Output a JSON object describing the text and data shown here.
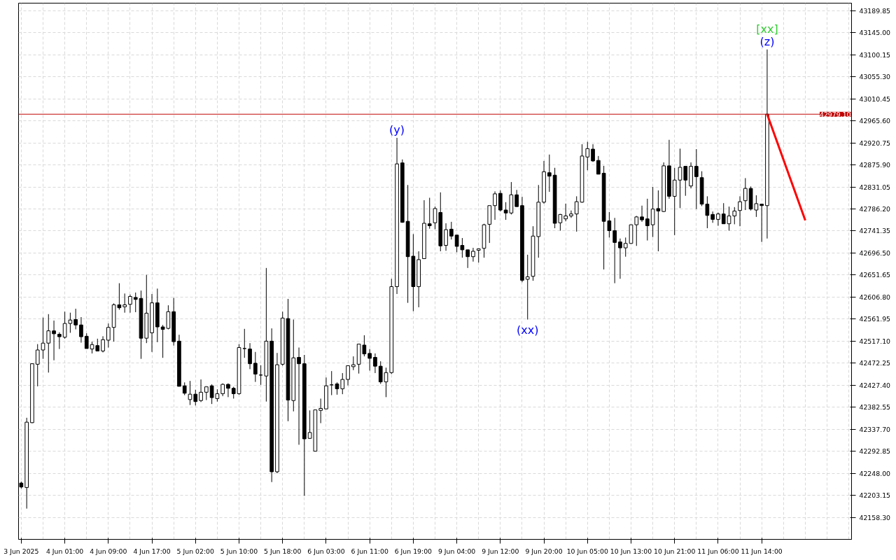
{
  "chart_data": {
    "type": "candlestick",
    "color": "#000000",
    "categories": [
      "3 Jun 2025",
      null,
      null,
      null,
      null,
      null,
      null,
      null,
      "4 Jun 01:00",
      null,
      null,
      null,
      null,
      null,
      null,
      null,
      "4 Jun 09:00",
      null,
      null,
      null,
      null,
      null,
      null,
      null,
      "4 Jun 17:00",
      null,
      null,
      null,
      null,
      null,
      null,
      null,
      "5 Jun 02:00",
      null,
      null,
      null,
      null,
      null,
      null,
      null,
      "5 Jun 10:00",
      null,
      null,
      null,
      null,
      null,
      null,
      null,
      "5 Jun 18:00",
      null,
      null,
      null,
      null,
      null,
      null,
      null,
      "6 Jun 03:00",
      null,
      null,
      null,
      null,
      null,
      null,
      null,
      "6 Jun 11:00",
      null,
      null,
      null,
      null,
      null,
      null,
      null,
      "6 Jun 19:00",
      null,
      null,
      null,
      null,
      null,
      null,
      null,
      "9 Jun 04:00",
      null,
      null,
      null,
      null,
      null,
      null,
      null,
      "9 Jun 12:00",
      null,
      null,
      null,
      null,
      null,
      null,
      null,
      "9 Jun 20:00",
      null,
      null,
      null,
      null,
      null,
      null,
      null,
      "10 Jun 05:00",
      null,
      null,
      null,
      null,
      null,
      null,
      null,
      "10 Jun 13:00",
      null,
      null,
      null,
      null,
      null,
      null,
      null,
      "10 Jun 21:00",
      null,
      null,
      null,
      null,
      null,
      null,
      null,
      "11 Jun 06:00",
      null,
      null,
      null,
      null,
      null,
      null,
      null,
      "11 Jun 14:00",
      null,
      null,
      null,
      null,
      null,
      null,
      null,
      null,
      null,
      null,
      null,
      null,
      null,
      null,
      null,
      null
    ],
    "ohlc": [
      [
        42228,
        42231,
        42217,
        42220
      ],
      [
        42219,
        42361,
        42176,
        42352
      ],
      [
        42351,
        42472,
        42350,
        42471
      ],
      [
        42470,
        42511,
        42425,
        42499
      ],
      [
        42499,
        42565,
        42481,
        42513
      ],
      [
        42513,
        42572,
        42453,
        42538
      ],
      [
        42538,
        42559,
        42478,
        42532
      ],
      [
        42531,
        42535,
        42501,
        42526
      ],
      [
        42525,
        42577,
        42522,
        42553
      ],
      [
        42553,
        42575,
        42534,
        42560
      ],
      [
        42561,
        42583,
        42541,
        42550
      ],
      [
        42550,
        42566,
        42514,
        42526
      ],
      [
        42527,
        42533,
        42502,
        42502
      ],
      [
        42501,
        42516,
        42492,
        42510
      ],
      [
        42508,
        42522,
        42497,
        42497
      ],
      [
        42497,
        42527,
        42494,
        42520
      ],
      [
        42519,
        42553,
        42504,
        42545
      ],
      [
        42545,
        42594,
        42516,
        42591
      ],
      [
        42591,
        42635,
        42581,
        42585
      ],
      [
        42587,
        42614,
        42575,
        42591
      ],
      [
        42592,
        42612,
        42575,
        42608
      ],
      [
        42606,
        42616,
        42576,
        42602
      ],
      [
        42604,
        42620,
        42481,
        42523
      ],
      [
        42523,
        42652,
        42513,
        42574
      ],
      [
        42534,
        42613,
        42495,
        42595
      ],
      [
        42595,
        42624,
        42515,
        42546
      ],
      [
        42546,
        42550,
        42483,
        42541
      ],
      [
        42543,
        42590,
        42541,
        42577
      ],
      [
        42577,
        42605,
        42508,
        42516
      ],
      [
        42517,
        42530,
        42425,
        42425
      ],
      [
        42426,
        42433,
        42407,
        42411
      ],
      [
        42398,
        42436,
        42387,
        42409
      ],
      [
        42409,
        42418,
        42386,
        42394
      ],
      [
        42396,
        42439,
        42393,
        42413
      ],
      [
        42413,
        42424,
        42397,
        42424
      ],
      [
        42426,
        42429,
        42389,
        42402
      ],
      [
        42400,
        42419,
        42394,
        42410
      ],
      [
        42410,
        42431,
        42405,
        42429
      ],
      [
        42429,
        42431,
        42403,
        42421
      ],
      [
        42421,
        42424,
        42400,
        42410
      ],
      [
        42410,
        42511,
        42408,
        42504
      ],
      [
        42502,
        42542,
        42483,
        42502
      ],
      [
        42501,
        42513,
        42460,
        42471
      ],
      [
        42472,
        42495,
        42434,
        42450
      ],
      [
        42448,
        42468,
        42428,
        42448
      ],
      [
        42446,
        42666,
        42394,
        42517
      ],
      [
        42517,
        42543,
        42230,
        42251
      ],
      [
        42251,
        42493,
        42248,
        42469
      ],
      [
        42470,
        42577,
        42467,
        42564
      ],
      [
        42563,
        42603,
        42354,
        42397
      ],
      [
        42396,
        42561,
        42374,
        42483
      ],
      [
        42484,
        42504,
        42306,
        42471
      ],
      [
        42471,
        42489,
        42202,
        42318
      ],
      [
        42319,
        42376,
        42318,
        42331
      ],
      [
        42293,
        42377,
        42293,
        42377
      ],
      [
        42376,
        42400,
        42350,
        42380
      ],
      [
        42379,
        42443,
        42379,
        42426
      ],
      [
        42428,
        42456,
        42407,
        42428
      ],
      [
        42430,
        42433,
        42408,
        42420
      ],
      [
        42420,
        42452,
        42409,
        42439
      ],
      [
        42439,
        42467,
        42427,
        42467
      ],
      [
        42465,
        42486,
        42458,
        42469
      ],
      [
        42470,
        42511,
        42451,
        42511
      ],
      [
        42509,
        42529,
        42486,
        42491
      ],
      [
        42492,
        42501,
        42457,
        42482
      ],
      [
        42484,
        42492,
        42452,
        42466
      ],
      [
        42466,
        42476,
        42430,
        42434
      ],
      [
        42434,
        42463,
        42403,
        42453
      ],
      [
        42453,
        42644,
        42450,
        42628
      ],
      [
        42628,
        42931,
        42613,
        42878
      ],
      [
        42880,
        42887,
        42758,
        42759
      ],
      [
        42761,
        42835,
        42595,
        42689
      ],
      [
        42690,
        42735,
        42578,
        42628
      ],
      [
        42628,
        42700,
        42586,
        42683
      ],
      [
        42685,
        42804,
        42685,
        42757
      ],
      [
        42756,
        42809,
        42746,
        42752
      ],
      [
        42758,
        42791,
        42745,
        42787
      ],
      [
        42779,
        42820,
        42700,
        42711
      ],
      [
        42712,
        42757,
        42701,
        42744
      ],
      [
        42745,
        42760,
        42724,
        42731
      ],
      [
        42733,
        42733,
        42698,
        42710
      ],
      [
        42712,
        42727,
        42687,
        42703
      ],
      [
        42703,
        42703,
        42666,
        42689
      ],
      [
        42689,
        42707,
        42679,
        42700
      ],
      [
        42702,
        42705,
        42677,
        42705
      ],
      [
        42706,
        42756,
        42687,
        42754
      ],
      [
        42755,
        42793,
        42717,
        42793
      ],
      [
        42793,
        42822,
        42764,
        42817
      ],
      [
        42818,
        42824,
        42781,
        42784
      ],
      [
        42784,
        42800,
        42764,
        42778
      ],
      [
        42778,
        42841,
        42775,
        42815
      ],
      [
        42815,
        42825,
        42791,
        42791
      ],
      [
        42793,
        42811,
        42637,
        42641
      ],
      [
        42643,
        42693,
        42561,
        42648
      ],
      [
        42649,
        42751,
        42640,
        42731
      ],
      [
        42730,
        42835,
        42687,
        42800
      ],
      [
        42800,
        42884,
        42797,
        42862
      ],
      [
        42860,
        42897,
        42821,
        42853
      ],
      [
        42855,
        42870,
        42747,
        42757
      ],
      [
        42758,
        42776,
        42742,
        42775
      ],
      [
        42766,
        42797,
        42761,
        42772
      ],
      [
        42772,
        42783,
        42768,
        42776
      ],
      [
        42776,
        42812,
        42740,
        42801
      ],
      [
        42800,
        42918,
        42799,
        42894
      ],
      [
        42892,
        42923,
        42865,
        42909
      ],
      [
        42908,
        42918,
        42882,
        42884
      ],
      [
        42885,
        42894,
        42857,
        42857
      ],
      [
        42859,
        42874,
        42663,
        42761
      ],
      [
        42762,
        42780,
        42728,
        42742
      ],
      [
        42742,
        42768,
        42635,
        42718
      ],
      [
        42719,
        42726,
        42644,
        42707
      ],
      [
        42707,
        42728,
        42689,
        42716
      ],
      [
        42716,
        42754,
        42716,
        42754
      ],
      [
        42754,
        42772,
        42711,
        42770
      ],
      [
        42770,
        42793,
        42760,
        42764
      ],
      [
        42766,
        42807,
        42722,
        42752
      ],
      [
        42754,
        42831,
        42729,
        42786
      ],
      [
        42787,
        42824,
        42700,
        42782
      ],
      [
        42781,
        42881,
        42780,
        42874
      ],
      [
        42874,
        42927,
        42807,
        42812
      ],
      [
        42812,
        42870,
        42733,
        42845
      ],
      [
        42845,
        42909,
        42788,
        42871
      ],
      [
        42873,
        42873,
        42813,
        42845
      ],
      [
        42833,
        42881,
        42828,
        42873
      ],
      [
        42873,
        42908,
        42786,
        42852
      ],
      [
        42850,
        42863,
        42792,
        42796
      ],
      [
        42796,
        42812,
        42747,
        42773
      ],
      [
        42775,
        42781,
        42758,
        42765
      ],
      [
        42765,
        42779,
        42752,
        42776
      ],
      [
        42776,
        42798,
        42756,
        42756
      ],
      [
        42756,
        42791,
        42742,
        42772
      ],
      [
        42772,
        42790,
        42755,
        42782
      ],
      [
        42783,
        42812,
        42751,
        42801
      ],
      [
        42803,
        42849,
        42784,
        42828
      ],
      [
        42828,
        42832,
        42783,
        42786
      ],
      [
        42784,
        42814,
        42770,
        42797
      ],
      [
        42796,
        42796,
        42719,
        42793
      ],
      [
        42793,
        43111,
        42726,
        42979.1
      ],
      null,
      null,
      null,
      null,
      null,
      null,
      null,
      null,
      null,
      null,
      null,
      null,
      null,
      null,
      null
    ],
    "series": [
      {
        "type": "line",
        "color": "#ff0000",
        "values": [
          null,
          null,
          null,
          null,
          null,
          null,
          null,
          null,
          null,
          null,
          null,
          null,
          null,
          null,
          null,
          null,
          null,
          null,
          null,
          null,
          null,
          null,
          null,
          null,
          null,
          null,
          null,
          null,
          null,
          null,
          null,
          null,
          null,
          null,
          null,
          null,
          null,
          null,
          null,
          null,
          null,
          null,
          null,
          null,
          null,
          null,
          null,
          null,
          null,
          null,
          null,
          null,
          null,
          null,
          null,
          null,
          null,
          null,
          null,
          null,
          null,
          null,
          null,
          null,
          null,
          null,
          null,
          null,
          null,
          null,
          null,
          null,
          null,
          null,
          null,
          null,
          null,
          null,
          null,
          null,
          null,
          null,
          null,
          null,
          null,
          null,
          null,
          null,
          null,
          null,
          null,
          null,
          null,
          null,
          null,
          null,
          null,
          null,
          null,
          null,
          null,
          null,
          null,
          null,
          null,
          null,
          null,
          null,
          null,
          null,
          null,
          null,
          null,
          null,
          null,
          null,
          null,
          null,
          null,
          null,
          null,
          null,
          null,
          null,
          null,
          null,
          null,
          null,
          null,
          null,
          null,
          null,
          null,
          null,
          null,
          null,
          null,
          42979.1,
          null,
          null,
          null,
          null,
          null,
          null,
          42763,
          null,
          null,
          null,
          null,
          null,
          null,
          null,
          null
        ]
      }
    ],
    "ylim": [
      42113.4,
      43205.3
    ],
    "yticks": [
      {
        "value": 42158.3,
        "label": "42158.30"
      },
      {
        "value": 42203.15,
        "label": "42203.15"
      },
      {
        "value": 42248.0,
        "label": "42248.00"
      },
      {
        "value": 42292.85,
        "label": "42292.85"
      },
      {
        "value": 42337.7,
        "label": "42337.70"
      },
      {
        "value": 42382.55,
        "label": "42382.55"
      },
      {
        "value": 42427.4,
        "label": "42427.40"
      },
      {
        "value": 42472.25,
        "label": "42472.25"
      },
      {
        "value": 42517.1,
        "label": "42517.10"
      },
      {
        "value": 42561.95,
        "label": "42561.95"
      },
      {
        "value": 42606.8,
        "label": "42606.80"
      },
      {
        "value": 42651.65,
        "label": "42651.65"
      },
      {
        "value": 42696.5,
        "label": "42696.50"
      },
      {
        "value": 42741.35,
        "label": "42741.35"
      },
      {
        "value": 42786.2,
        "label": "42786.20"
      },
      {
        "value": 42831.05,
        "label": "42831.05"
      },
      {
        "value": 42875.9,
        "label": "42875.90"
      },
      {
        "value": 42920.75,
        "label": "42920.75"
      },
      {
        "value": 42965.6,
        "label": "42965.60"
      },
      {
        "value": 43010.45,
        "label": "43010.45"
      },
      {
        "value": 43055.3,
        "label": "43055.30"
      },
      {
        "value": 43100.15,
        "label": "43100.15"
      },
      {
        "value": 43145.0,
        "label": "43145.00"
      },
      {
        "value": 43189.85,
        "label": "43189.85"
      }
    ],
    "ref_lines": [
      {
        "axis": "y",
        "value": 42979.1,
        "label": "42979.10",
        "color": "#c00000"
      }
    ],
    "annotations": [
      {
        "text": "(y)",
        "y": 42931
      },
      {
        "text": "(xx)",
        "y": 42561
      },
      {
        "text": "(z)",
        "y": 43111
      },
      {
        "text": "[xx]",
        "y": 43111
      }
    ],
    "grid": true
  }
}
